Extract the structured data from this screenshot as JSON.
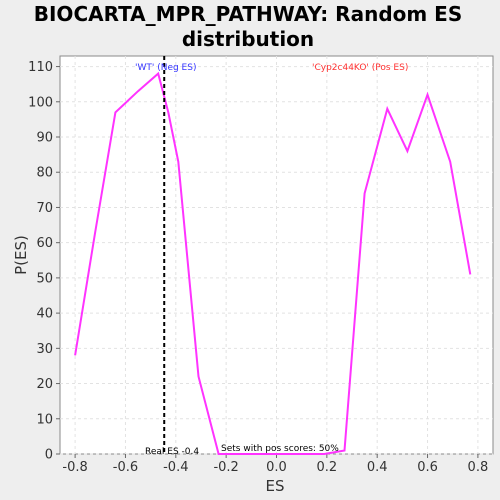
{
  "chart_data": {
    "type": "line",
    "title_lines": [
      "BIOCARTA_MPR_PATHWAY: Random ES",
      "distribution"
    ],
    "xlabel": "ES",
    "ylabel": "P(ES)",
    "xlim": [
      -0.86,
      0.86
    ],
    "ylim": [
      0,
      113
    ],
    "xticks": [
      -0.8,
      -0.6,
      -0.4,
      -0.2,
      0.0,
      0.2,
      0.4,
      0.6,
      0.8
    ],
    "xtick_labels": [
      "-0.8",
      "-0.6",
      "-0.4",
      "-0.2",
      "0.0",
      "0.2",
      "0.4",
      "0.6",
      "0.8"
    ],
    "yticks": [
      0,
      10,
      20,
      30,
      40,
      50,
      60,
      70,
      80,
      90,
      100,
      110
    ],
    "ytick_labels": [
      "0",
      "10",
      "20",
      "30",
      "40",
      "50",
      "60",
      "70",
      "80",
      "90",
      "100",
      "110"
    ],
    "grid": true,
    "series": [
      {
        "color": "#ff33ff",
        "x": [
          -0.8,
          -0.72,
          -0.64,
          -0.55,
          -0.47,
          -0.43,
          -0.39,
          -0.31,
          -0.23,
          -0.15,
          -0.07,
          0.02,
          0.1,
          0.19,
          0.27,
          0.35,
          0.44,
          0.52,
          0.6,
          0.69,
          0.77
        ],
        "y": [
          28,
          63,
          97,
          103,
          108,
          97,
          83,
          22,
          0,
          0,
          0,
          0,
          0,
          0,
          1,
          74,
          98,
          86,
          102,
          83,
          51
        ]
      }
    ],
    "real_es": {
      "x": -0.446,
      "label": "Real ES -0.4",
      "color": "#000000"
    },
    "annotations": {
      "neg_label": "'WT' (Neg ES)",
      "neg_color": "#3333ff",
      "pos_label": "'Cyp2c44KO' (Pos ES)",
      "pos_color": "#ff3333",
      "pos_scores": "Sets with pos scores: 50%"
    }
  }
}
